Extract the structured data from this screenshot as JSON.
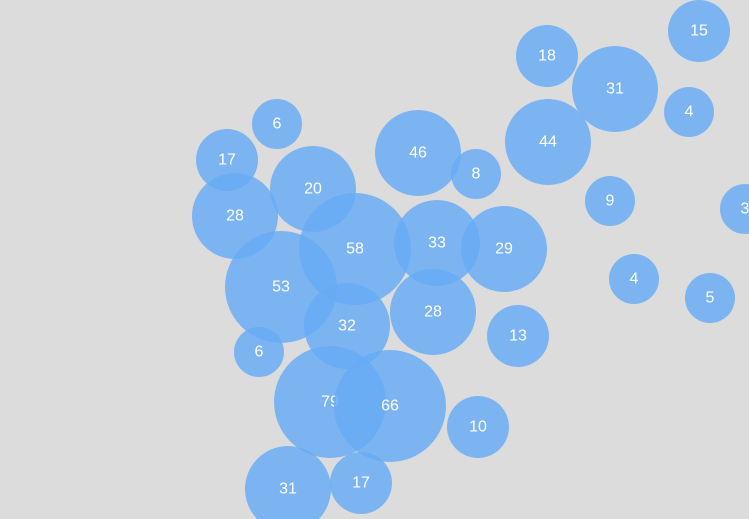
{
  "chart_data": {
    "type": "bubble",
    "background_color": "#dcdcdc",
    "bubble_color": "#67abf5",
    "label_color": "#ffffff",
    "values": [
      6,
      17,
      20,
      28,
      58,
      53,
      32,
      6,
      79,
      66,
      31,
      17,
      46,
      8,
      33,
      29,
      28,
      13,
      10,
      18,
      31,
      44,
      15,
      4,
      9,
      4,
      5,
      3
    ]
  }
}
